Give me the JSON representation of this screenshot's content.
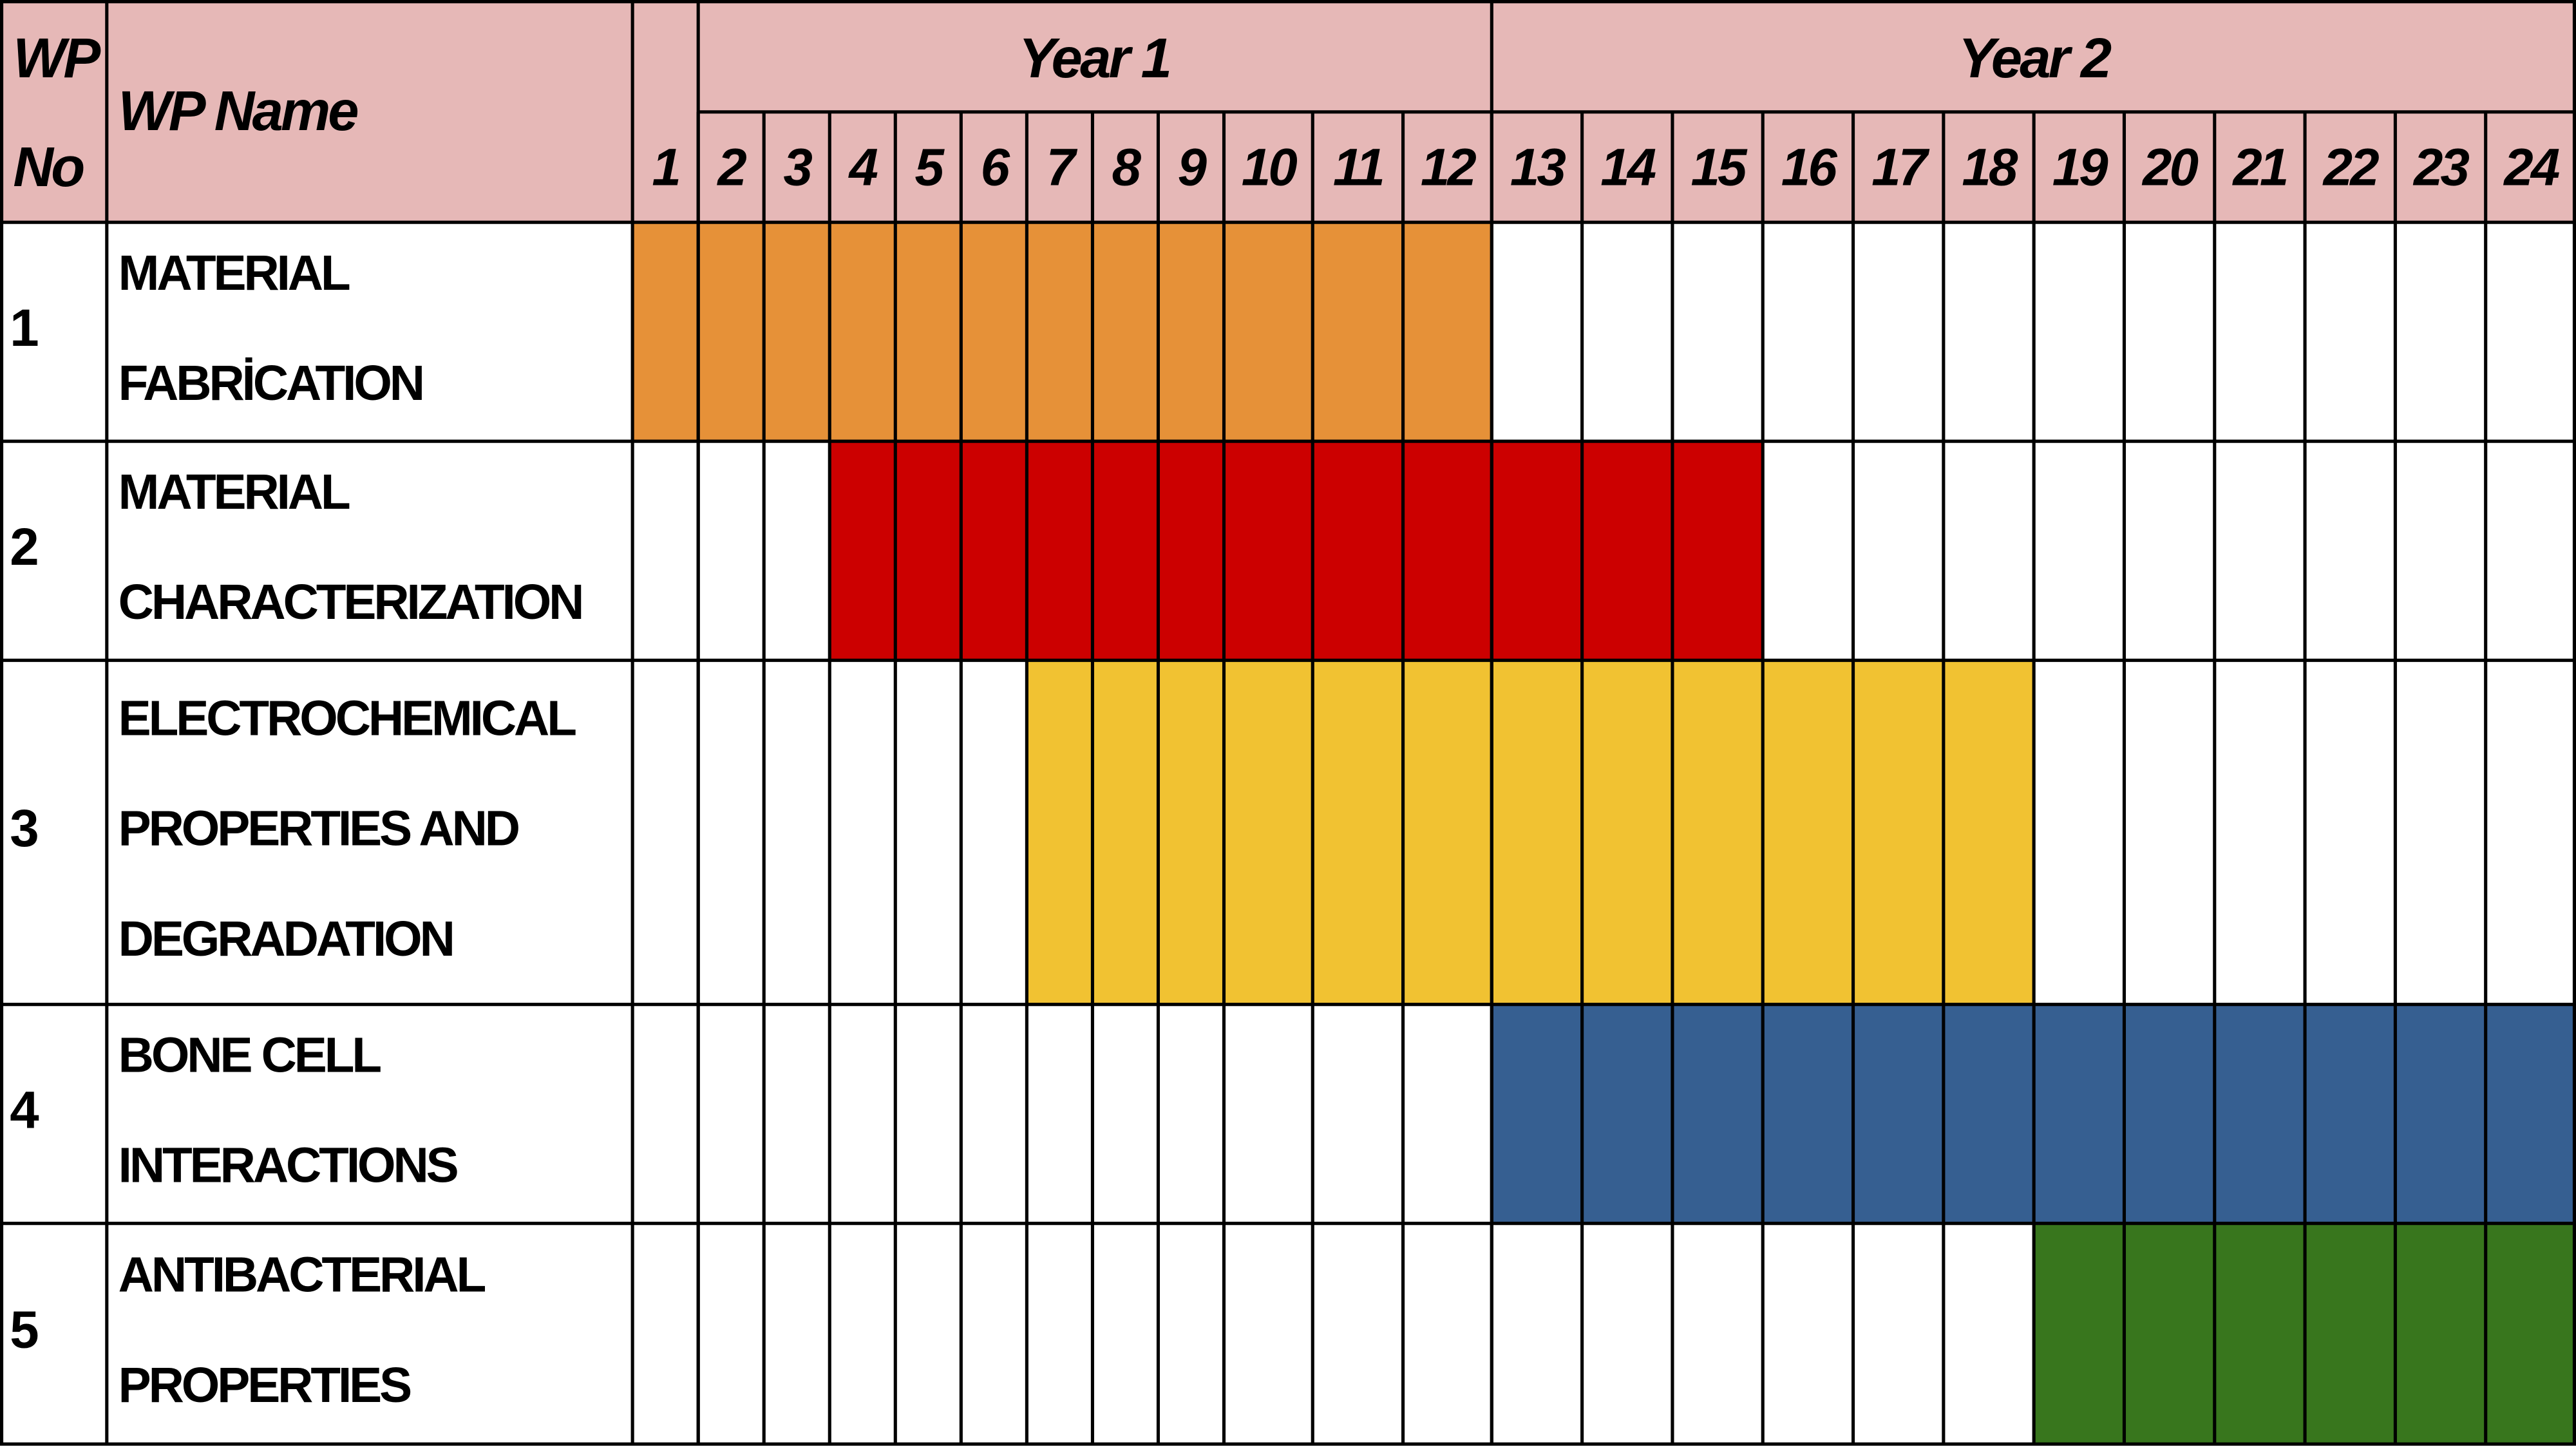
{
  "header": {
    "wp_no": [
      "WP",
      "No"
    ],
    "wp_name": "WP Name",
    "years": [
      "Year 1",
      "Year 2"
    ],
    "months": [
      1,
      2,
      3,
      4,
      5,
      6,
      7,
      8,
      9,
      10,
      11,
      12,
      13,
      14,
      15,
      16,
      17,
      18,
      19,
      20,
      21,
      22,
      23,
      24
    ]
  },
  "rows": [
    {
      "no": "1",
      "name": [
        "MATERIAL",
        "FABRİCATION"
      ],
      "start": 1,
      "end": 12,
      "color": "#e69138"
    },
    {
      "no": "2",
      "name": [
        "MATERIAL",
        "CHARACTERIZATION"
      ],
      "start": 4,
      "end": 15,
      "color": "#cc0000"
    },
    {
      "no": "3",
      "name": [
        "ELECTROCHEMICAL",
        "PROPERTIES AND",
        "DEGRADATION"
      ],
      "start": 7,
      "end": 18,
      "color": "#f1c232"
    },
    {
      "no": "4",
      "name": [
        "BONE CELL",
        "INTERACTIONS"
      ],
      "start": 13,
      "end": 24,
      "color": "#365f91"
    },
    {
      "no": "5",
      "name": [
        "ANTIBACTERIAL",
        "PROPERTIES"
      ],
      "start": 19,
      "end": 24,
      "color": "#38761d"
    }
  ]
}
